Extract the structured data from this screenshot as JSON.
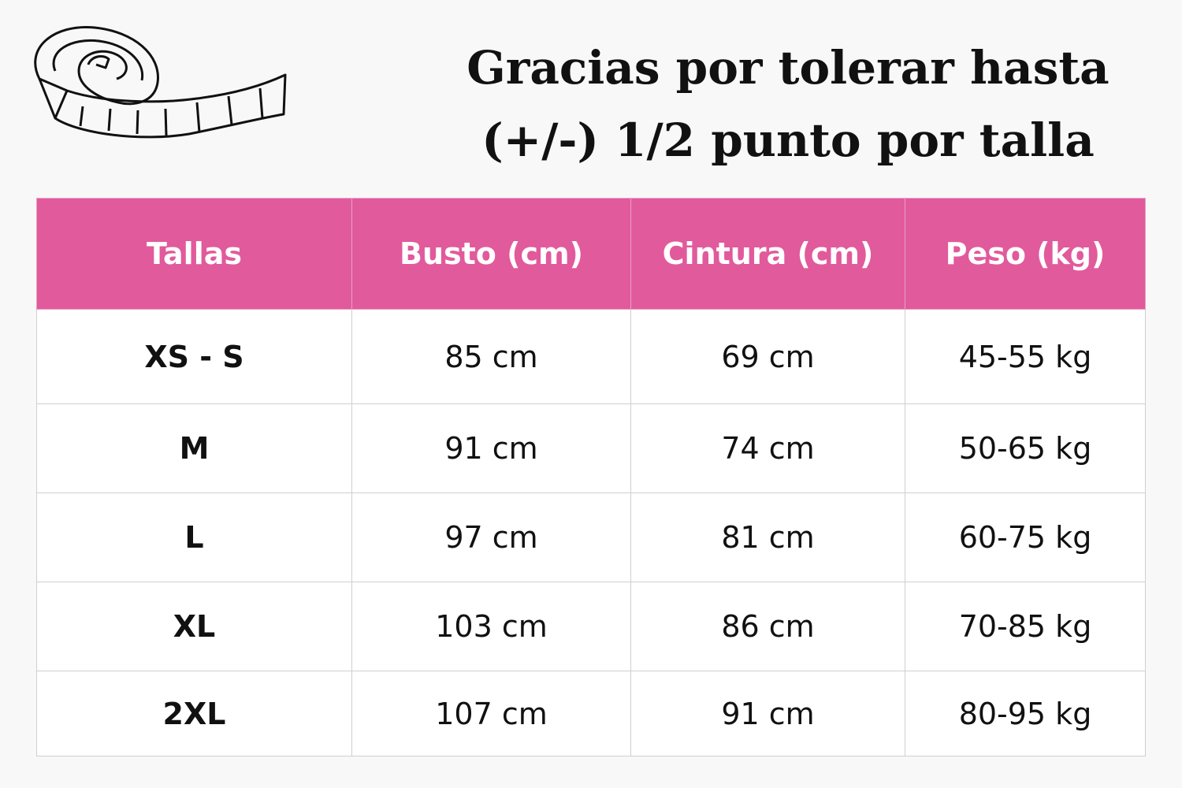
{
  "title_lines": [
    "Gracias por tolerar hasta",
    "(+/-) 1/2 punto por talla"
  ],
  "table": {
    "header": [
      "Tallas",
      "Busto (cm)",
      "Cintura (cm)",
      "Peso (kg)"
    ],
    "rows": [
      [
        "XS - S",
        "85 cm",
        "69 cm",
        "45-55 kg"
      ],
      [
        "M",
        "91 cm",
        "74 cm",
        "50-65 kg"
      ],
      [
        "L",
        "97 cm",
        "81 cm",
        "60-75 kg"
      ],
      [
        "XL",
        "103 cm",
        "86 cm",
        "70-85 kg"
      ],
      [
        "2XL",
        "107 cm",
        "91 cm",
        "80-95 kg"
      ]
    ]
  }
}
